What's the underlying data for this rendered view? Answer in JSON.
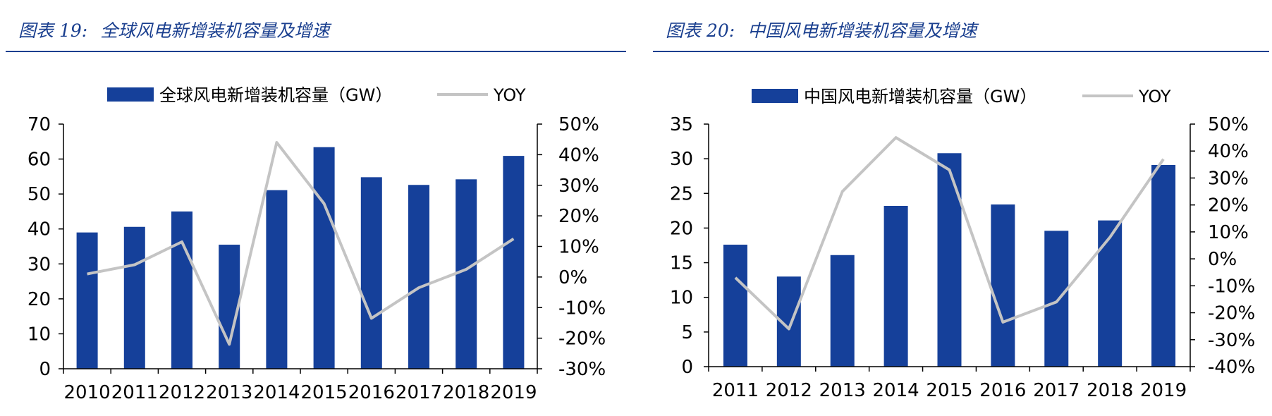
{
  "colors": {
    "bar": "#15409a",
    "line": "#c4c4c4",
    "title": "#1a3f8f",
    "axis": "#000000"
  },
  "chart_data": [
    {
      "type": "bar",
      "figure_number": "图表 19:",
      "title": "全球风电新增装机容量及增速",
      "legend": {
        "bar_label": "全球风电新增装机容量（GW）",
        "line_label": "YOY",
        "position": "top-center"
      },
      "categories": [
        "2010",
        "2011",
        "2012",
        "2013",
        "2014",
        "2015",
        "2016",
        "2017",
        "2018",
        "2019"
      ],
      "series": [
        {
          "name": "全球风电新增装机容量（GW）",
          "type": "bar",
          "axis": "left",
          "values": [
            39.0,
            40.6,
            45.0,
            35.5,
            51.1,
            63.4,
            54.8,
            52.6,
            54.2,
            60.9
          ]
        },
        {
          "name": "YOY",
          "type": "line",
          "axis": "right",
          "values": [
            0.01,
            0.04,
            0.115,
            -0.22,
            0.44,
            0.24,
            -0.135,
            -0.035,
            0.025,
            0.125
          ]
        }
      ],
      "y_left": {
        "ylim": [
          0,
          70
        ],
        "ticks": [
          "0",
          "10",
          "20",
          "30",
          "40",
          "50",
          "60",
          "70"
        ]
      },
      "y_right": {
        "ylim": [
          -0.3,
          0.5
        ],
        "ticks": [
          "-30%",
          "-20%",
          "-10%",
          "0%",
          "10%",
          "20%",
          "30%",
          "40%",
          "50%"
        ]
      }
    },
    {
      "type": "bar",
      "figure_number": "图表 20:",
      "title": "中国风电新增装机容量及增速",
      "legend": {
        "bar_label": "中国风电新增装机容量（GW）",
        "line_label": "YOY",
        "position": "top-center"
      },
      "categories": [
        "2011",
        "2012",
        "2013",
        "2014",
        "2015",
        "2016",
        "2017",
        "2018",
        "2019"
      ],
      "series": [
        {
          "name": "中国风电新增装机容量（GW）",
          "type": "bar",
          "axis": "left",
          "values": [
            17.6,
            13.0,
            16.1,
            23.2,
            30.8,
            23.4,
            19.6,
            21.1,
            29.1
          ]
        },
        {
          "name": "YOY",
          "type": "line",
          "axis": "right",
          "values": [
            -0.07,
            -0.26,
            0.25,
            0.45,
            0.33,
            -0.235,
            -0.16,
            0.08,
            0.37
          ]
        }
      ],
      "y_left": {
        "ylim": [
          0,
          35
        ],
        "ticks": [
          "0",
          "5",
          "10",
          "15",
          "20",
          "25",
          "30",
          "35"
        ]
      },
      "y_right": {
        "ylim": [
          -0.4,
          0.5
        ],
        "ticks": [
          "-40%",
          "-30%",
          "-20%",
          "-10%",
          "0%",
          "10%",
          "20%",
          "30%",
          "40%",
          "50%"
        ]
      }
    }
  ]
}
